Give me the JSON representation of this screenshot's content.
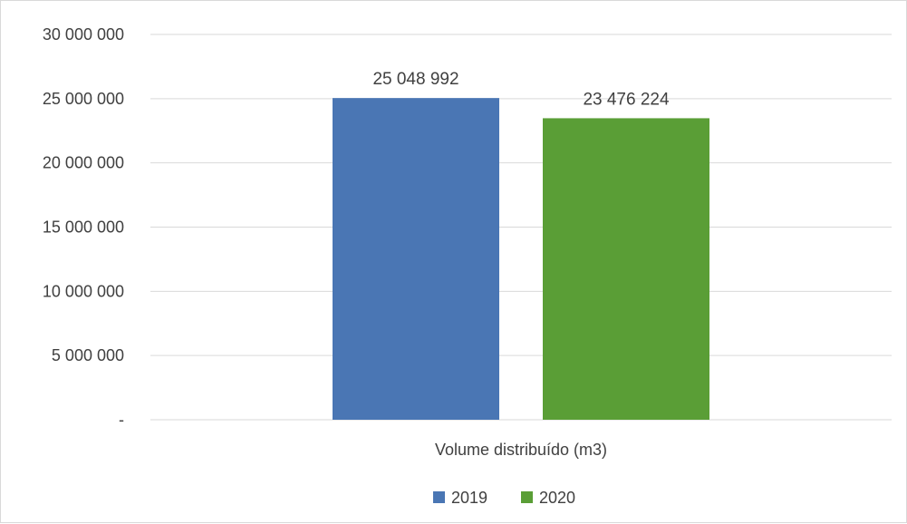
{
  "chart_data": {
    "type": "bar",
    "title": "",
    "xlabel": "",
    "ylabel": "",
    "categories": [
      "Volume distribuído (m3)"
    ],
    "series": [
      {
        "name": "2019",
        "values": [
          25048992
        ],
        "label": "25 048 992",
        "color": "#4a76b4"
      },
      {
        "name": "2020",
        "values": [
          23476224
        ],
        "label": "23 476 224",
        "color": "#5a9e36"
      }
    ],
    "ylim": [
      0,
      30000000
    ],
    "yticks": [
      0,
      5000000,
      10000000,
      15000000,
      20000000,
      25000000,
      30000000
    ],
    "ytick_labels": [
      "-",
      "5 000 000",
      "10 000 000",
      "15 000 000",
      "20 000 000",
      "25 000 000",
      "30 000 000"
    ],
    "grid": true,
    "legend_position": "bottom-center",
    "gridline_color": "#d9d9d9"
  }
}
